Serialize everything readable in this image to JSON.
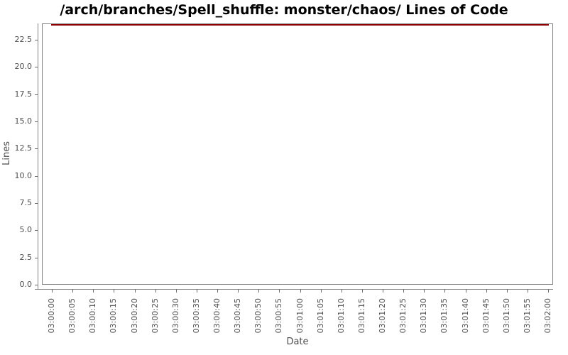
{
  "chart_data": {
    "type": "line",
    "title": "/arch/branches/Spell_shuffle: monster/chaos/ Lines of Code",
    "xlabel": "Date",
    "ylabel": "Lines",
    "x": [
      "03:00:00",
      "03:00:05",
      "03:00:10",
      "03:00:15",
      "03:00:20",
      "03:00:25",
      "03:00:30",
      "03:00:35",
      "03:00:40",
      "03:00:45",
      "03:00:50",
      "03:00:55",
      "03:01:00",
      "03:01:05",
      "03:01:10",
      "03:01:15",
      "03:01:20",
      "03:01:25",
      "03:01:30",
      "03:01:35",
      "03:01:40",
      "03:01:45",
      "03:01:50",
      "03:01:55",
      "03:02:00"
    ],
    "series": [
      {
        "name": "Lines of Code",
        "color": "#8b0000",
        "values": [
          24,
          24,
          24,
          24,
          24,
          24,
          24,
          24,
          24,
          24,
          24,
          24,
          24,
          24,
          24,
          24,
          24,
          24,
          24,
          24,
          24,
          24,
          24,
          24,
          24
        ]
      }
    ],
    "ylim": [
      0,
      24
    ],
    "yticks": [
      0,
      2.5,
      5,
      7.5,
      10,
      12.5,
      15,
      17.5,
      20,
      22.5
    ],
    "ytick_labels": [
      "0.0",
      "2.5",
      "5.0",
      "7.5",
      "10.0",
      "12.5",
      "15.0",
      "17.5",
      "20.0",
      "22.5"
    ],
    "grid": false,
    "legend": false,
    "colors": {
      "series": "#8b0000",
      "axis": "#848484",
      "plot_border": "#808080",
      "tick_label": "#4d4d4d",
      "title": "#000000",
      "background": "#ffffff"
    }
  }
}
